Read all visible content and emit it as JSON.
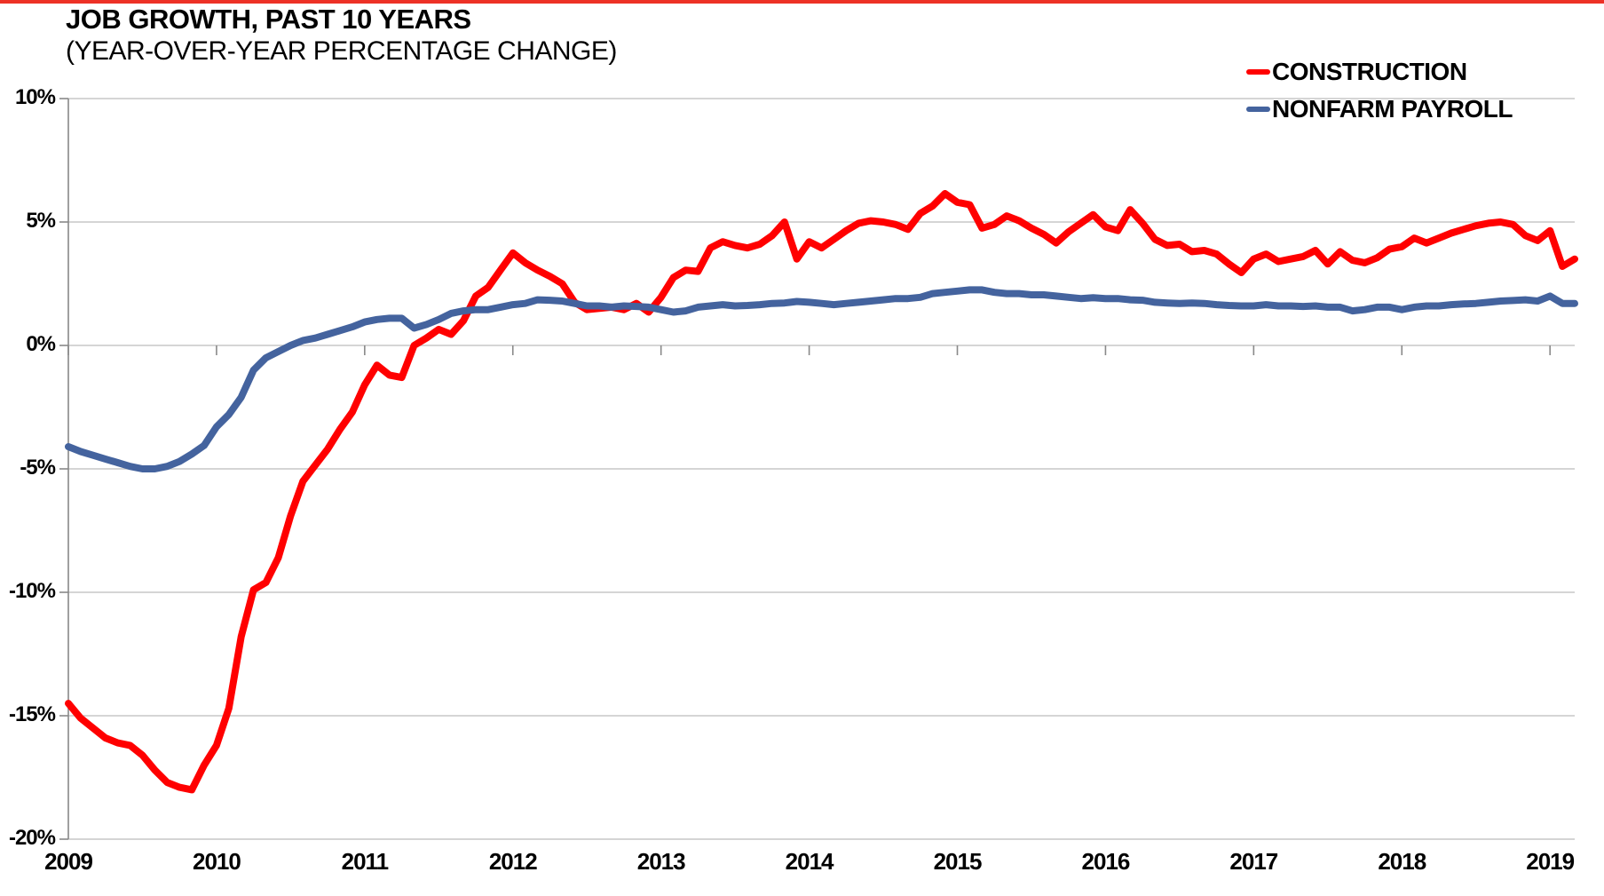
{
  "page": {
    "title": "JOB GROWTH, PAST 10 YEARS",
    "subtitle": "(YEAR-OVER-YEAR PERCENTAGE CHANGE)"
  },
  "colors": {
    "top_bar": "#ED3126",
    "construction": "#FF0000",
    "nonfarm": "#44639E",
    "gridline": "#C7C7C7",
    "axis": "#898989",
    "text": "#000000"
  },
  "chart_data": {
    "type": "line",
    "title": "JOB GROWTH, PAST 10 YEARS",
    "subtitle": "(YEAR-OVER-YEAR PERCENTAGE CHANGE)",
    "x_frequency": "monthly",
    "x_start": "2009-01",
    "x_end": "2019-03",
    "x_tick_labels": [
      "2009",
      "2010",
      "2011",
      "2012",
      "2013",
      "2014",
      "2015",
      "2016",
      "2017",
      "2018",
      "2019"
    ],
    "y_ticks": [
      10,
      5,
      0,
      -5,
      -10,
      -15,
      -20
    ],
    "y_tick_labels": [
      "10%",
      "5%",
      "0%",
      "-5%",
      "-10%",
      "-15%",
      "-20%"
    ],
    "ylim": [
      -20,
      10
    ],
    "grid": "horizontal",
    "legend_position": "top-right",
    "series": [
      {
        "name": "CONSTRUCTION",
        "color": "#FF0000",
        "values": [
          -14.5,
          -15.1,
          -15.5,
          -15.9,
          -16.1,
          -16.2,
          -16.6,
          -17.2,
          -17.7,
          -17.9,
          -18.0,
          -17.0,
          -16.2,
          -14.7,
          -11.8,
          -9.9,
          -9.6,
          -8.6,
          -6.9,
          -5.5,
          -4.85,
          -4.2,
          -3.4,
          -2.7,
          -1.6,
          -0.8,
          -1.2,
          -1.3,
          0.0,
          0.3,
          0.65,
          0.45,
          1.0,
          2.0,
          2.35,
          3.05,
          3.75,
          3.35,
          3.05,
          2.8,
          2.5,
          1.75,
          1.45,
          1.5,
          1.55,
          1.45,
          1.7,
          1.35,
          1.95,
          2.75,
          3.05,
          3.0,
          3.95,
          4.2,
          4.05,
          3.95,
          4.1,
          4.45,
          5.0,
          3.5,
          4.2,
          3.95,
          4.3,
          4.65,
          4.95,
          5.05,
          5.0,
          4.9,
          4.7,
          5.35,
          5.65,
          6.15,
          5.8,
          5.7,
          4.75,
          4.9,
          5.25,
          5.05,
          4.75,
          4.5,
          4.15,
          4.6,
          4.95,
          5.3,
          4.8,
          4.65,
          5.5,
          4.95,
          4.3,
          4.05,
          4.1,
          3.8,
          3.85,
          3.7,
          3.3,
          2.95,
          3.5,
          3.7,
          3.4,
          3.5,
          3.6,
          3.85,
          3.3,
          3.8,
          3.45,
          3.35,
          3.55,
          3.9,
          4.0,
          4.35,
          4.15,
          4.35,
          4.55,
          4.7,
          4.85,
          4.95,
          5.0,
          4.9,
          4.45,
          4.25,
          4.65,
          3.2,
          3.5
        ]
      },
      {
        "name": "NONFARM PAYROLL",
        "color": "#44639E",
        "values": [
          -4.1,
          -4.3,
          -4.45,
          -4.6,
          -4.75,
          -4.9,
          -5.0,
          -5.0,
          -4.9,
          -4.7,
          -4.4,
          -4.05,
          -3.3,
          -2.8,
          -2.1,
          -1.0,
          -0.5,
          -0.25,
          0.0,
          0.2,
          0.3,
          0.45,
          0.6,
          0.75,
          0.95,
          1.05,
          1.1,
          1.1,
          0.7,
          0.85,
          1.05,
          1.3,
          1.4,
          1.45,
          1.45,
          1.55,
          1.65,
          1.7,
          1.85,
          1.83,
          1.8,
          1.7,
          1.6,
          1.6,
          1.55,
          1.6,
          1.58,
          1.55,
          1.45,
          1.35,
          1.4,
          1.55,
          1.6,
          1.65,
          1.6,
          1.62,
          1.65,
          1.7,
          1.72,
          1.78,
          1.75,
          1.7,
          1.65,
          1.7,
          1.75,
          1.8,
          1.85,
          1.9,
          1.9,
          1.95,
          2.1,
          2.15,
          2.2,
          2.25,
          2.25,
          2.15,
          2.1,
          2.1,
          2.05,
          2.05,
          2.0,
          1.95,
          1.9,
          1.93,
          1.9,
          1.9,
          1.85,
          1.83,
          1.75,
          1.72,
          1.7,
          1.72,
          1.7,
          1.65,
          1.62,
          1.6,
          1.6,
          1.65,
          1.6,
          1.6,
          1.58,
          1.6,
          1.55,
          1.55,
          1.4,
          1.45,
          1.55,
          1.55,
          1.45,
          1.55,
          1.6,
          1.6,
          1.65,
          1.68,
          1.7,
          1.75,
          1.8,
          1.82,
          1.85,
          1.8,
          2.0,
          1.7,
          1.7
        ]
      }
    ]
  }
}
